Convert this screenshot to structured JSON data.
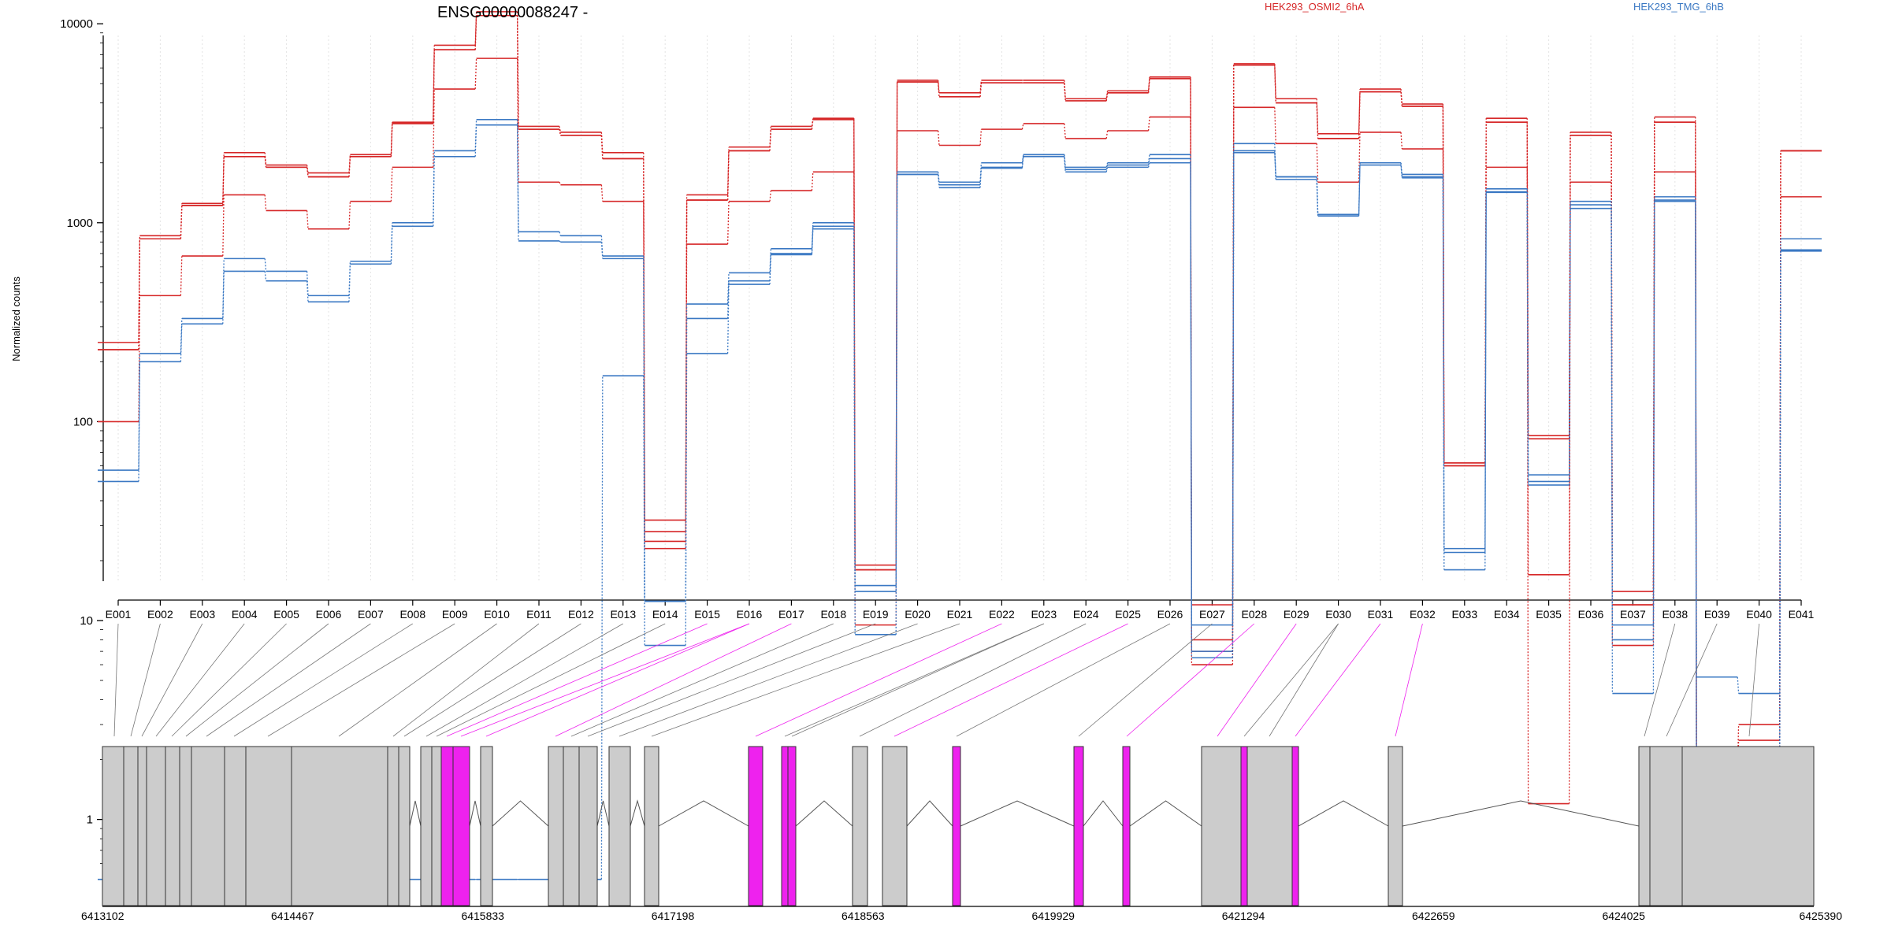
{
  "chart_data": {
    "type": "line",
    "title": "ENSG00000088247 -",
    "ylabel": "Normalized counts",
    "xlabel": "",
    "y_scale": "log",
    "ylim": [
      0.5,
      16000
    ],
    "y_ticks": [
      1,
      10,
      100,
      1000,
      10000
    ],
    "y_tick_labels": [
      "1",
      "10",
      "100",
      "1000",
      "10000"
    ],
    "grid": "vertical dotted lines at exon bins",
    "legend": [
      {
        "label": "HEK293_OSMI2_6hA",
        "color": "#d62728"
      },
      {
        "label": "HEK293_TMG_6hB",
        "color": "#3a78c3"
      }
    ],
    "categories": [
      "E001",
      "E002",
      "E003",
      "E004",
      "E005",
      "E006",
      "E007",
      "E008",
      "E009",
      "E010",
      "E011",
      "E012",
      "E013",
      "E014",
      "E015",
      "E016",
      "E017",
      "E018",
      "E019",
      "E020",
      "E021",
      "E022",
      "E023",
      "E024",
      "E025",
      "E026",
      "E027",
      "E028",
      "E029",
      "E030",
      "E031",
      "E032",
      "E033",
      "E034",
      "E035",
      "E036",
      "E037",
      "E038",
      "E039",
      "E040",
      "E041"
    ],
    "series": [
      {
        "color": "#d62728",
        "values": [
          250,
          860,
          1250,
          2250,
          1950,
          1780,
          2200,
          3200,
          7800,
          11500,
          3050,
          2850,
          2250,
          32,
          1380,
          2400,
          3050,
          3350,
          19,
          5200,
          4500,
          5200,
          5200,
          4200,
          4600,
          5400,
          12,
          6300,
          4200,
          2800,
          4700,
          3950,
          62,
          3350,
          85,
          2850,
          14,
          3400,
          1.8,
          3.0,
          2300
        ]
      },
      {
        "color": "#d62728",
        "values": [
          230,
          830,
          1220,
          2150,
          1900,
          1700,
          2150,
          3150,
          7400,
          11000,
          2950,
          2750,
          2100,
          28,
          1300,
          2300,
          2950,
          3300,
          18,
          5100,
          4300,
          5050,
          5050,
          4100,
          4500,
          5300,
          8,
          6200,
          4000,
          2650,
          4550,
          3850,
          60,
          3200,
          82,
          2750,
          12,
          3200,
          1.5,
          2.5,
          2300
        ]
      },
      {
        "color": "#d62728",
        "values": [
          100,
          430,
          680,
          1380,
          1150,
          930,
          1280,
          1900,
          4700,
          6700,
          1600,
          1550,
          1280,
          23,
          780,
          1280,
          1450,
          1800,
          9.5,
          2900,
          2450,
          2950,
          3150,
          2650,
          2900,
          3400,
          7,
          3800,
          2500,
          1600,
          2850,
          2350,
          62,
          1900,
          17,
          1600,
          7.5,
          1800,
          1.1,
          2.0,
          1350
        ]
      },
      {
        "color": "#d62728",
        "values": [
          230,
          830,
          1220,
          2150,
          1900,
          1700,
          2150,
          3150,
          7400,
          11000,
          2950,
          2750,
          2100,
          25,
          1300,
          2300,
          2950,
          3300,
          18,
          5100,
          4300,
          5050,
          5050,
          4100,
          4500,
          5300,
          6,
          6200,
          4000,
          2650,
          4550,
          3850,
          60,
          3200,
          1.2,
          2750,
          12,
          3200,
          0.9,
          0.5,
          2300
        ]
      },
      {
        "color": "#3a78c3",
        "values": [
          57,
          220,
          330,
          660,
          570,
          430,
          640,
          1000,
          2300,
          3300,
          900,
          860,
          680,
          12.5,
          390,
          560,
          740,
          1000,
          15,
          1800,
          1600,
          2000,
          2200,
          1900,
          2000,
          2200,
          9.5,
          2500,
          1700,
          1100,
          2000,
          1750,
          23,
          1480,
          54,
          1280,
          9.5,
          1350,
          5.2,
          4.3,
          830
        ]
      },
      {
        "color": "#3a78c3",
        "values": [
          50,
          200,
          310,
          570,
          510,
          400,
          620,
          960,
          2150,
          3100,
          810,
          800,
          660,
          12.5,
          330,
          510,
          700,
          960,
          14,
          1750,
          1550,
          1900,
          2200,
          1850,
          1950,
          2100,
          7,
          2300,
          1700,
          1100,
          2000,
          1700,
          22,
          1430,
          50,
          1230,
          8,
          1300,
          1.9,
          1.6,
          730
        ]
      },
      {
        "color": "#3a78c3",
        "values": [
          0.5,
          0.5,
          0.5,
          0.5,
          0.5,
          0.5,
          0.5,
          0.5,
          0.5,
          0.5,
          0.5,
          0.5,
          170,
          7.5,
          220,
          490,
          690,
          930,
          8.5,
          1750,
          1500,
          1880,
          2150,
          1800,
          1900,
          2000,
          6.5,
          2250,
          1650,
          1080,
          1950,
          1680,
          18,
          1420,
          48,
          1180,
          4.3,
          1280,
          0.5,
          0.5,
          720
        ]
      }
    ],
    "gene_axis": {
      "start": 6413102,
      "end": 6425390,
      "tick_labels": [
        "6413102",
        "6414467",
        "6415833",
        "6417198",
        "6418563",
        "6419929",
        "6421294",
        "6422659",
        "6424025",
        "6425390"
      ],
      "highlight_color": "#ee22ee"
    }
  }
}
